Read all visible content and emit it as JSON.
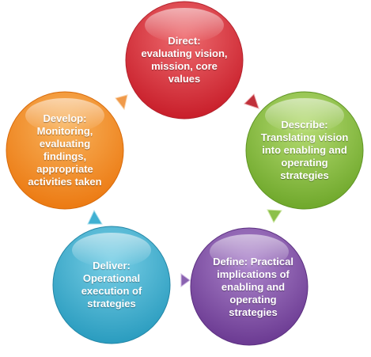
{
  "nodes": [
    {
      "id": "direct",
      "text": "Direct:\nevaluating vision,\nmission, core\nvalues",
      "color": "#c81e2a",
      "light": "#ee6b6f"
    },
    {
      "id": "describe",
      "text": "Describe:\nTranslating vision\ninto enabling and\noperating\nstrategies",
      "color": "#6fa82b",
      "light": "#b6dc73"
    },
    {
      "id": "define",
      "text": "Define: Practical\nimplications of\nenabling and\noperating\nstrategies",
      "color": "#6b3a92",
      "light": "#ad86cc"
    },
    {
      "id": "deliver",
      "text": "Deliver:\nOperational\nexecution of\nstrategies",
      "color": "#2a9cbf",
      "light": "#79cfe6"
    },
    {
      "id": "develop",
      "text": "Develop:\nMonitoring,\nevaluating\nfindings,\nappropriate\nactivities taken",
      "color": "#ec7a12",
      "light": "#f8b35d"
    }
  ]
}
